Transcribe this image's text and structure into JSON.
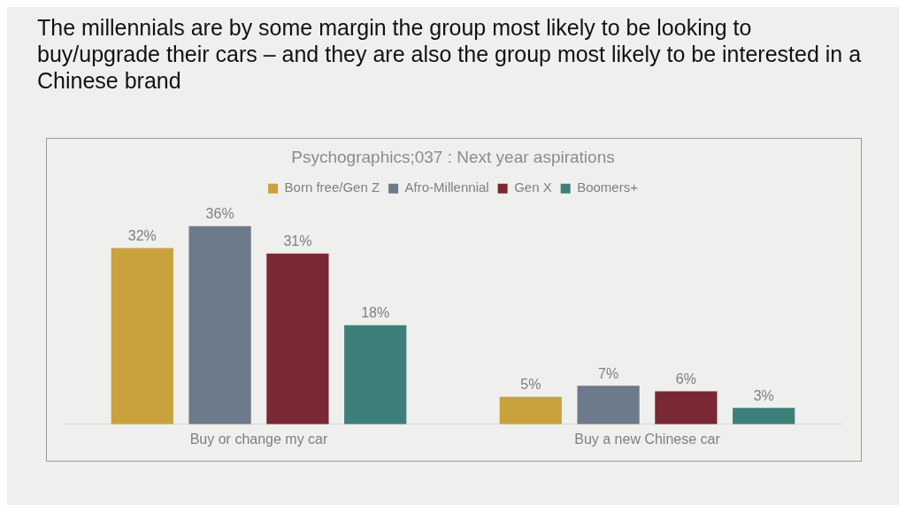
{
  "chart_data": {
    "type": "bar",
    "title": "The millennials are by some margin the group most likely to be looking to buy/upgrade their cars – and they are also the group most likely to be interested in a Chinese brand",
    "subtitle": "Psychographics;037 : Next year aspirations",
    "categories": [
      "Buy or change my car",
      "Buy a new Chinese car"
    ],
    "series": [
      {
        "name": "Born free/Gen Z",
        "color": "#c9a13d",
        "values": [
          32,
          5
        ],
        "value_labels": [
          "32%",
          "5%"
        ]
      },
      {
        "name": "Afro-Millennial",
        "color": "#6d7a8b",
        "values": [
          36,
          7
        ],
        "value_labels": [
          "36%",
          "7%"
        ]
      },
      {
        "name": "Gen X",
        "color": "#7a2834",
        "values": [
          31,
          6
        ],
        "value_labels": [
          "31%",
          "6%"
        ]
      },
      {
        "name": "Boomers+",
        "color": "#3f7f79",
        "values": [
          18,
          3
        ],
        "value_labels": [
          "18%",
          "3%"
        ]
      }
    ],
    "legend": "top",
    "grid": false
  }
}
